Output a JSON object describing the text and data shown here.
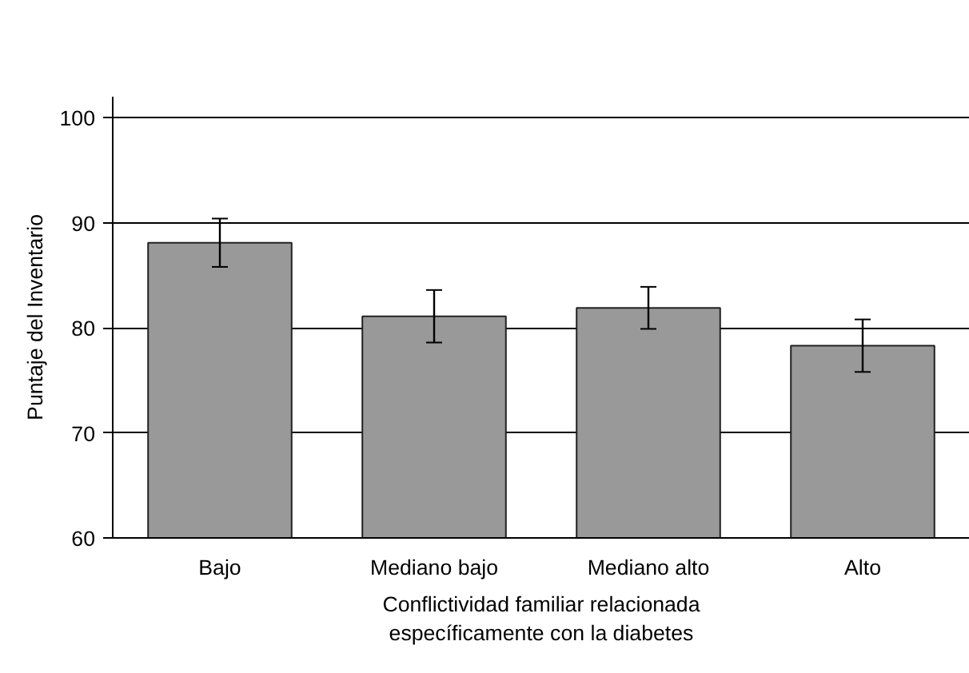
{
  "chart_data": {
    "type": "bar",
    "xlabel": "Conflictividad familiar relacionada\nespecíficamente con la diabetes",
    "ylabel": "Puntaje del Inventario",
    "categories": [
      "Bajo",
      "Mediano bajo",
      "Mediano alto",
      "Alto"
    ],
    "series": [
      {
        "color": "#999999",
        "values": [
          88.1,
          81.1,
          81.9,
          78.3
        ],
        "errors": [
          2.3,
          2.5,
          2.0,
          2.5
        ]
      }
    ],
    "ylim": [
      60,
      102
    ],
    "yticks": [
      60,
      70,
      80,
      90,
      100
    ],
    "grid": "y"
  }
}
